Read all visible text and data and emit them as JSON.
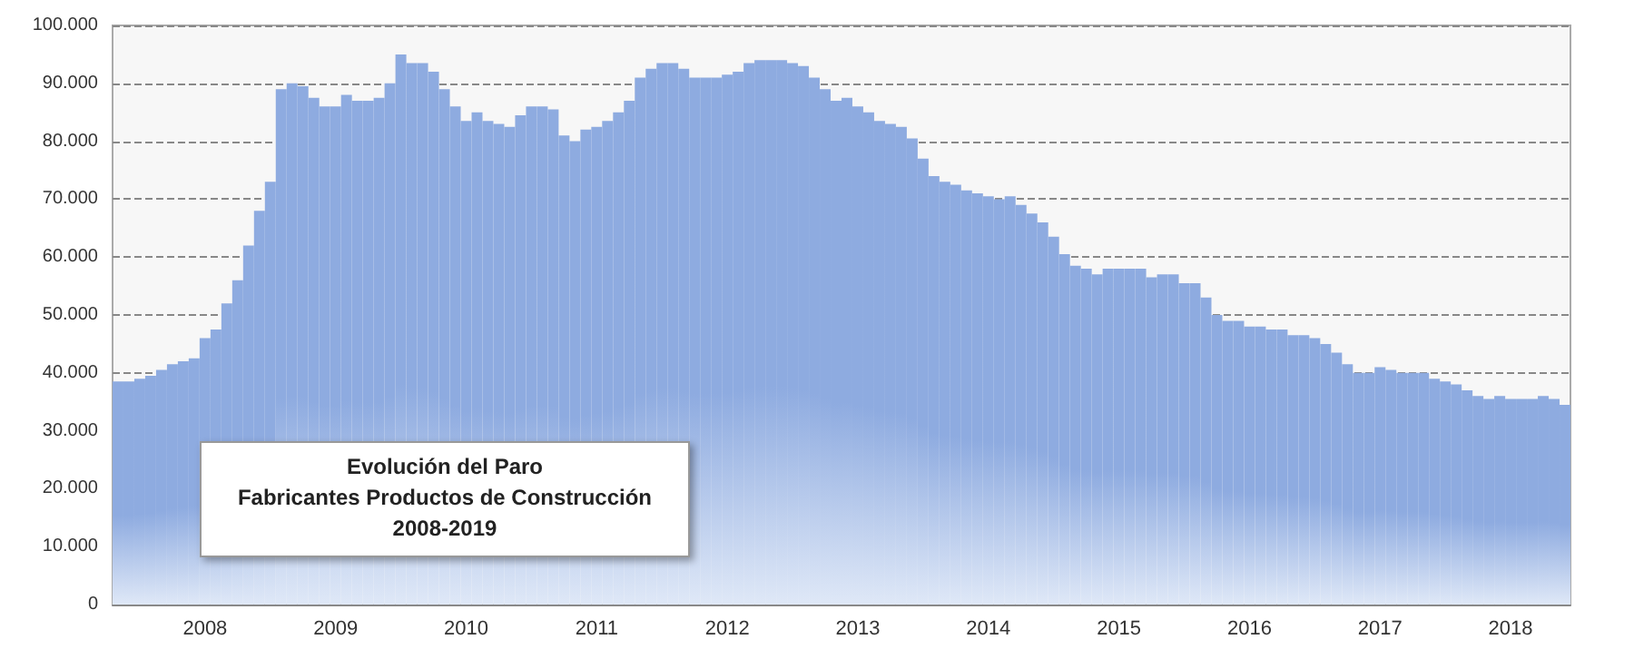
{
  "chart_data": {
    "type": "bar",
    "title": "Evolución del Paro",
    "subtitle": "Fabricantes Productos de Construcción",
    "annotations": [
      "2008-2019"
    ],
    "categories": [
      null,
      null,
      null,
      null,
      null,
      null,
      null,
      null,
      "2008",
      null,
      null,
      null,
      null,
      null,
      null,
      null,
      null,
      null,
      null,
      null,
      "2009",
      null,
      null,
      null,
      null,
      null,
      null,
      null,
      null,
      null,
      null,
      null,
      "2010",
      null,
      null,
      null,
      null,
      null,
      null,
      null,
      null,
      null,
      null,
      null,
      "2011",
      null,
      null,
      null,
      null,
      null,
      null,
      null,
      null,
      null,
      null,
      null,
      "2012",
      null,
      null,
      null,
      null,
      null,
      null,
      null,
      null,
      null,
      null,
      null,
      "2013",
      null,
      null,
      null,
      null,
      null,
      null,
      null,
      null,
      null,
      null,
      null,
      "2014",
      null,
      null,
      null,
      null,
      null,
      null,
      null,
      null,
      null,
      null,
      null,
      "2015",
      null,
      null,
      null,
      null,
      null,
      null,
      null,
      null,
      null,
      null,
      null,
      "2016",
      null,
      null,
      null,
      null,
      null,
      null,
      null,
      null,
      null,
      null,
      null,
      "2017",
      null,
      null,
      null,
      null,
      null,
      null,
      null,
      null,
      null,
      null,
      null,
      "2018",
      null,
      null,
      null,
      null,
      null
    ],
    "values": [
      38500,
      38500,
      39000,
      39500,
      40500,
      41500,
      42000,
      42500,
      46000,
      47500,
      52000,
      56000,
      62000,
      68000,
      73000,
      89000,
      90000,
      89500,
      87500,
      86000,
      86000,
      88000,
      87000,
      87000,
      87500,
      90000,
      95000,
      93500,
      93500,
      92000,
      89000,
      86000,
      83500,
      85000,
      83500,
      83000,
      82500,
      84500,
      86000,
      86000,
      85500,
      81000,
      80000,
      82000,
      82500,
      83500,
      85000,
      87000,
      91000,
      92500,
      93500,
      93500,
      92500,
      91000,
      91000,
      91000,
      91500,
      92000,
      93500,
      94000,
      94000,
      94000,
      93500,
      93000,
      91000,
      89000,
      87000,
      87500,
      86000,
      85000,
      83500,
      83000,
      82500,
      80500,
      77000,
      74000,
      73000,
      72500,
      71500,
      71000,
      70500,
      70000,
      70500,
      69000,
      67500,
      66000,
      63500,
      60500,
      58500,
      58000,
      57000,
      58000,
      58000,
      58000,
      58000,
      56500,
      57000,
      57000,
      55500,
      55500,
      53000,
      50000,
      49000,
      49000,
      48000,
      48000,
      47500,
      47500,
      46500,
      46500,
      46000,
      45000,
      43500,
      41500,
      40000,
      40000,
      41000,
      40500,
      40000,
      40000,
      40000,
      39000,
      38500,
      38000,
      37000,
      36000,
      35500,
      36000,
      35500,
      35500,
      35500,
      36000,
      35500,
      34500
    ],
    "color": "#8eabe0",
    "ylim": [
      0,
      100000
    ],
    "yticks": [
      0,
      {
        "value": 10000,
        "label": "10.000"
      },
      {
        "value": 20000,
        "label": "20.000"
      },
      {
        "value": 30000,
        "label": "30.000"
      },
      {
        "value": 40000,
        "label": "40.000"
      },
      {
        "value": 50000,
        "label": "50.000"
      },
      {
        "value": 60000,
        "label": "60.000"
      },
      {
        "value": 70000,
        "label": "70.000"
      },
      {
        "value": 80000,
        "label": "80.000"
      },
      {
        "value": 90000,
        "label": "90.000"
      },
      {
        "value": 100000,
        "label": "100.000"
      }
    ],
    "grid": "y"
  }
}
